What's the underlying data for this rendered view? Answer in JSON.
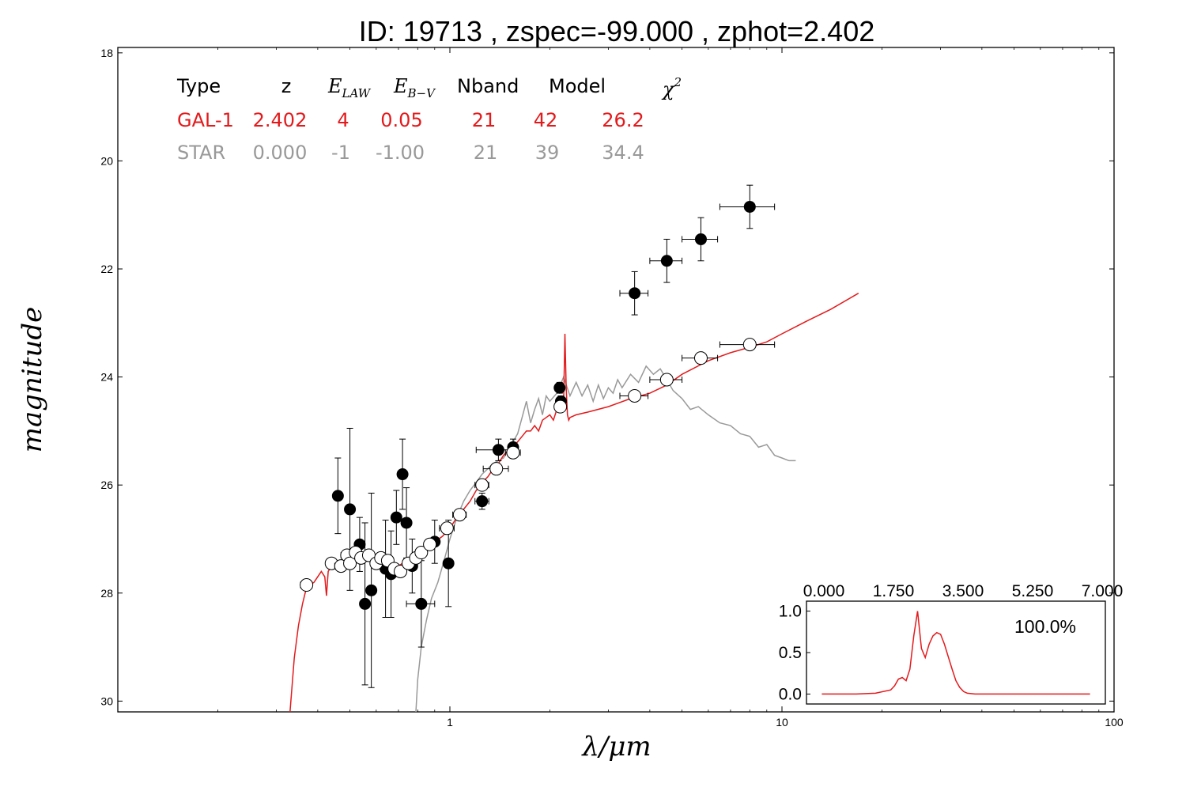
{
  "chart_data": {
    "type": "scatter",
    "title": "ID:  19713 , zspec=-99.000 , zphot=2.402",
    "xlabel": "λ/μm",
    "ylabel": "magnitude",
    "x_scale": "log",
    "xlim": [
      0.1,
      100
    ],
    "ylim": [
      30.2,
      17.9
    ],
    "y_inverted": true,
    "x_ticks": [
      1,
      10,
      100
    ],
    "x_tick_labels": [
      "1",
      "10",
      "100"
    ],
    "y_ticks": [
      18,
      20,
      22,
      24,
      26,
      28,
      30
    ],
    "y_tick_labels": [
      "18",
      "20",
      "22",
      "24",
      "26",
      "28",
      "30"
    ],
    "table": {
      "headers": [
        "Type",
        "z",
        "E_LAW",
        "E_B−V",
        "Nband",
        "Model",
        "χ²"
      ],
      "header_E_main": "E",
      "header_E_law_sub": "LAW",
      "header_E_bv_sub": "B−V",
      "header_chi_main": "χ",
      "header_chi_sup": "2",
      "rows": [
        {
          "type": "GAL-1",
          "z": "2.402",
          "elaw": "4",
          "ebv": "0.05",
          "nband": "21",
          "model": "42",
          "chi2": "26.2",
          "color": "#e31a1c"
        },
        {
          "type": "STAR",
          "z": "0.000",
          "elaw": "-1",
          "ebv": "-1.00",
          "nband": "21",
          "model": "39",
          "chi2": "34.4",
          "color": "#999999"
        }
      ]
    },
    "observed_points": {
      "name": "observed",
      "color": "#000000",
      "points": [
        {
          "x": 0.46,
          "y": 26.2,
          "xerr": 0.01,
          "yerr": 0.7
        },
        {
          "x": 0.5,
          "y": 26.45,
          "xerr": 0.01,
          "yerr": 1.5
        },
        {
          "x": 0.535,
          "y": 27.1,
          "xerr": 0.01,
          "yerr": 0.5
        },
        {
          "x": 0.555,
          "y": 28.2,
          "xerr": 0.01,
          "yerr": 1.5
        },
        {
          "x": 0.58,
          "y": 27.95,
          "xerr": 0.01,
          "yerr": 1.8
        },
        {
          "x": 0.64,
          "y": 27.55,
          "xerr": 0.01,
          "yerr": 0.9
        },
        {
          "x": 0.665,
          "y": 27.65,
          "xerr": 0.01,
          "yerr": 0.8
        },
        {
          "x": 0.69,
          "y": 26.6,
          "xerr": 0.01,
          "yerr": 0.5
        },
        {
          "x": 0.72,
          "y": 25.8,
          "xerr": 0.01,
          "yerr": 0.65
        },
        {
          "x": 0.74,
          "y": 26.7,
          "xerr": 0.01,
          "yerr": 0.65
        },
        {
          "x": 0.77,
          "y": 27.5,
          "xerr": 0.01,
          "yerr": 0.5
        },
        {
          "x": 0.82,
          "y": 28.2,
          "xerr": 0.08,
          "yerr": 0.8
        },
        {
          "x": 0.9,
          "y": 27.05,
          "xerr": 0.01,
          "yerr": 0.4
        },
        {
          "x": 0.99,
          "y": 27.45,
          "xerr": 0.01,
          "yerr": 0.8
        },
        {
          "x": 1.25,
          "y": 26.3,
          "xerr": 0.06,
          "yerr": 0.15
        },
        {
          "x": 1.4,
          "y": 25.35,
          "xerr": 0.2,
          "yerr": 0.2
        },
        {
          "x": 1.55,
          "y": 25.3,
          "xerr": 0.05,
          "yerr": 0.15
        },
        {
          "x": 2.14,
          "y": 24.2,
          "xerr": 0.04,
          "yerr": 0.1
        },
        {
          "x": 2.16,
          "y": 24.45,
          "xerr": 0.04,
          "yerr": 0.1
        },
        {
          "x": 3.6,
          "y": 22.45,
          "xerr": 0.35,
          "yerr": 0.4
        },
        {
          "x": 4.5,
          "y": 21.85,
          "xerr": 0.5,
          "yerr": 0.4
        },
        {
          "x": 5.7,
          "y": 21.45,
          "xerr": 0.7,
          "yerr": 0.4
        },
        {
          "x": 8.0,
          "y": 20.85,
          "xerr": 1.5,
          "yerr": 0.4
        }
      ]
    },
    "model_points": {
      "name": "model",
      "color": "#ffffff",
      "points": [
        {
          "x": 0.37,
          "y": 27.85,
          "xerr": 0.015
        },
        {
          "x": 0.44,
          "y": 27.45,
          "xerr": 0.015
        },
        {
          "x": 0.47,
          "y": 27.5,
          "xerr": 0.02
        },
        {
          "x": 0.49,
          "y": 27.3,
          "xerr": 0.02
        },
        {
          "x": 0.5,
          "y": 27.45,
          "xerr": 0.02
        },
        {
          "x": 0.52,
          "y": 27.25,
          "xerr": 0.02
        },
        {
          "x": 0.54,
          "y": 27.35,
          "xerr": 0.02
        },
        {
          "x": 0.57,
          "y": 27.3,
          "xerr": 0.02
        },
        {
          "x": 0.6,
          "y": 27.45,
          "xerr": 0.02
        },
        {
          "x": 0.62,
          "y": 27.35,
          "xerr": 0.02
        },
        {
          "x": 0.65,
          "y": 27.4,
          "xerr": 0.02
        },
        {
          "x": 0.68,
          "y": 27.55,
          "xerr": 0.02
        },
        {
          "x": 0.71,
          "y": 27.6,
          "xerr": 0.02
        },
        {
          "x": 0.75,
          "y": 27.45,
          "xerr": 0.02
        },
        {
          "x": 0.79,
          "y": 27.35,
          "xerr": 0.02
        },
        {
          "x": 0.82,
          "y": 27.25,
          "xerr": 0.02
        },
        {
          "x": 0.87,
          "y": 27.1,
          "xerr": 0.02
        },
        {
          "x": 0.98,
          "y": 26.8,
          "xerr": 0.05
        },
        {
          "x": 1.07,
          "y": 26.55,
          "xerr": 0.05
        },
        {
          "x": 1.25,
          "y": 26.0,
          "xerr": 0.06
        },
        {
          "x": 1.38,
          "y": 25.7,
          "xerr": 0.12
        },
        {
          "x": 1.55,
          "y": 25.4,
          "xerr": 0.08
        },
        {
          "x": 2.15,
          "y": 24.55,
          "xerr": 0.05
        },
        {
          "x": 3.6,
          "y": 24.35,
          "xerr": 0.35
        },
        {
          "x": 4.5,
          "y": 24.05,
          "xerr": 0.5
        },
        {
          "x": 5.7,
          "y": 23.65,
          "xerr": 0.7
        },
        {
          "x": 8.0,
          "y": 23.4,
          "xerr": 1.5
        }
      ]
    },
    "galaxy_template": {
      "name": "GAL-1",
      "color": "#e31a1c",
      "x": [
        0.33,
        0.34,
        0.35,
        0.36,
        0.37,
        0.39,
        0.41,
        0.42,
        0.425,
        0.43,
        0.44,
        0.46,
        0.48,
        0.5,
        0.52,
        0.55,
        0.58,
        0.62,
        0.66,
        0.7,
        0.74,
        0.78,
        0.82,
        0.86,
        0.9,
        0.95,
        1.0,
        1.05,
        1.1,
        1.15,
        1.2,
        1.25,
        1.3,
        1.35,
        1.4,
        1.45,
        1.5,
        1.55,
        1.6,
        1.65,
        1.7,
        1.75,
        1.8,
        1.85,
        1.9,
        1.95,
        2.0,
        2.05,
        2.1,
        2.15,
        2.2,
        2.22,
        2.24,
        2.26,
        2.28,
        2.3,
        2.4,
        2.6,
        3.0,
        3.5,
        4.0,
        4.5,
        5.0,
        6.0,
        7.0,
        8.0,
        9.0,
        10.0,
        12.0,
        14.0,
        17.0
      ],
      "y": [
        30.2,
        29.2,
        28.6,
        28.2,
        27.9,
        27.8,
        27.6,
        27.7,
        28.05,
        27.6,
        27.5,
        27.45,
        27.35,
        27.4,
        27.35,
        27.3,
        27.4,
        27.35,
        27.45,
        27.5,
        27.4,
        27.35,
        27.3,
        27.2,
        27.05,
        26.95,
        26.8,
        26.6,
        26.45,
        26.3,
        26.1,
        25.95,
        25.85,
        25.7,
        25.6,
        25.45,
        25.35,
        25.3,
        25.2,
        25.1,
        25.0,
        25.0,
        24.9,
        25.0,
        24.8,
        24.75,
        24.7,
        24.8,
        24.6,
        24.55,
        24.5,
        23.2,
        24.2,
        24.7,
        24.8,
        24.75,
        24.7,
        24.65,
        24.55,
        24.4,
        24.3,
        24.15,
        23.95,
        23.7,
        23.55,
        23.45,
        23.35,
        23.2,
        22.95,
        22.75,
        22.45
      ]
    },
    "star_template": {
      "name": "STAR",
      "color": "#999999",
      "x": [
        0.79,
        0.8,
        0.82,
        0.85,
        0.88,
        0.92,
        0.96,
        1.0,
        1.05,
        1.1,
        1.15,
        1.2,
        1.25,
        1.3,
        1.35,
        1.4,
        1.45,
        1.5,
        1.55,
        1.6,
        1.65,
        1.7,
        1.75,
        1.8,
        1.85,
        1.9,
        1.95,
        2.0,
        2.1,
        2.2,
        2.3,
        2.4,
        2.5,
        2.6,
        2.7,
        2.8,
        2.9,
        3.0,
        3.1,
        3.2,
        3.3,
        3.5,
        3.7,
        3.9,
        4.1,
        4.3,
        4.5,
        4.7,
        5.0,
        5.3,
        5.6,
        6.0,
        6.5,
        7.0,
        7.5,
        8.0,
        8.5,
        9.0,
        9.5,
        10.0,
        10.5,
        11.0
      ],
      "y": [
        30.2,
        29.6,
        29.0,
        28.5,
        28.1,
        27.8,
        27.4,
        27.0,
        26.6,
        26.3,
        26.1,
        25.95,
        25.8,
        25.7,
        25.6,
        25.55,
        25.5,
        25.35,
        25.2,
        25.05,
        24.75,
        24.45,
        24.85,
        24.6,
        24.4,
        24.7,
        24.35,
        24.45,
        24.3,
        24.0,
        24.35,
        24.1,
        24.35,
        24.15,
        24.45,
        24.15,
        24.4,
        24.2,
        24.3,
        24.05,
        24.2,
        23.95,
        24.1,
        23.8,
        23.95,
        23.85,
        24.05,
        24.25,
        24.4,
        24.6,
        24.55,
        24.7,
        24.85,
        24.9,
        25.05,
        25.1,
        25.3,
        25.25,
        25.45,
        25.5,
        25.55,
        25.55
      ]
    },
    "inset": {
      "x_ticks": [
        0,
        1.75,
        3.5,
        5.25,
        7
      ],
      "x_tick_labels": [
        "0.000",
        "1.750",
        "3.500",
        "5.250",
        "7.000"
      ],
      "y_ticks": [
        0,
        0.5,
        1.0
      ],
      "y_tick_labels": [
        "0.0",
        "0.5",
        "1.0"
      ],
      "label": "100.0%",
      "color": "#e31a1c",
      "x": [
        0.0,
        0.9,
        1.4,
        1.8,
        1.9,
        2.0,
        2.1,
        2.2,
        2.3,
        2.4,
        2.5,
        2.6,
        2.7,
        2.8,
        2.9,
        3.0,
        3.1,
        3.2,
        3.3,
        3.4,
        3.5,
        3.6,
        3.7,
        3.8,
        4.0,
        4.2,
        4.5,
        5.0,
        6.0,
        7.0
      ],
      "y": [
        0.0,
        0.0,
        0.01,
        0.05,
        0.1,
        0.18,
        0.2,
        0.16,
        0.3,
        0.7,
        1.0,
        0.55,
        0.44,
        0.6,
        0.7,
        0.74,
        0.72,
        0.6,
        0.45,
        0.3,
        0.16,
        0.08,
        0.03,
        0.01,
        0.0,
        0.0,
        0.0,
        0.0,
        0.0,
        0.0
      ]
    }
  }
}
